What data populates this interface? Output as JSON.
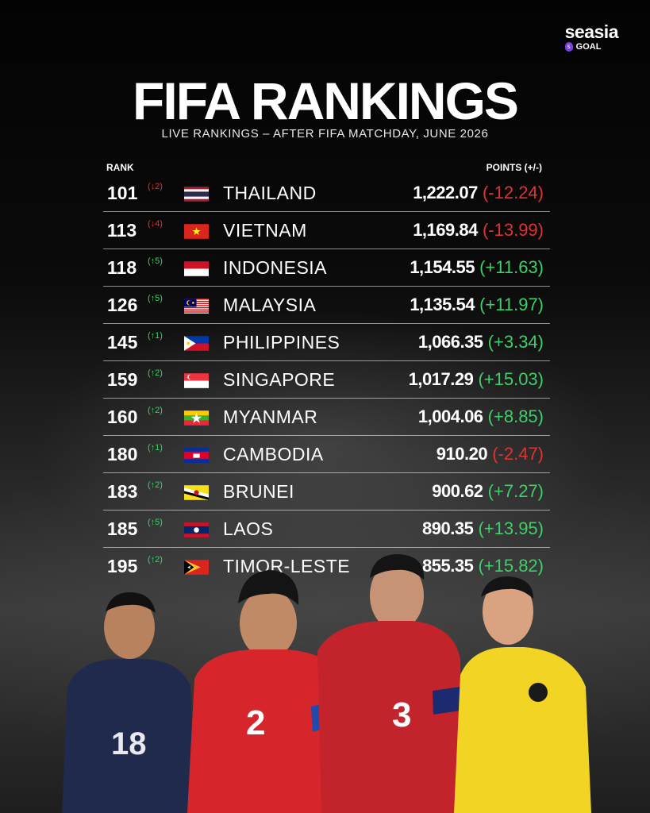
{
  "logo": {
    "brand": "seasia",
    "badge": "s",
    "sub": "GOAL"
  },
  "title": "FIFA RANKINGS",
  "subtitle": "LIVE RANKINGS – AFTER FIFA MATCHDAY, JUNE 2026",
  "headers": {
    "rank": "RANK",
    "points": "POINTS (+/-)"
  },
  "colors": {
    "up": "#3ecf6a",
    "down": "#e0332f",
    "brand_accent": "#7b3fe4"
  },
  "rows": [
    {
      "rank": "101",
      "change": "(↓2)",
      "dir": "down",
      "flag": "thailand-flag",
      "country": "THAILAND",
      "points": "1,222.07",
      "delta": "(-12.24)"
    },
    {
      "rank": "113",
      "change": "(↓4)",
      "dir": "down",
      "flag": "vietnam-flag",
      "country": "VIETNAM",
      "points": "1,169.84",
      "delta": "(-13.99)"
    },
    {
      "rank": "118",
      "change": "(↑5)",
      "dir": "up",
      "flag": "indonesia-flag",
      "country": "INDONESIA",
      "points": "1,154.55",
      "delta": "(+11.63)"
    },
    {
      "rank": "126",
      "change": "(↑5)",
      "dir": "up",
      "flag": "malaysia-flag",
      "country": "MALAYSIA",
      "points": "1,135.54",
      "delta": "(+11.97)"
    },
    {
      "rank": "145",
      "change": "(↑1)",
      "dir": "up",
      "flag": "philippines-flag",
      "country": "PHILIPPINES",
      "points": "1,066.35",
      "delta": "(+3.34)"
    },
    {
      "rank": "159",
      "change": "(↑2)",
      "dir": "up",
      "flag": "singapore-flag",
      "country": "SINGAPORE",
      "points": "1,017.29",
      "delta": "(+15.03)"
    },
    {
      "rank": "160",
      "change": "(↑2)",
      "dir": "up",
      "flag": "myanmar-flag",
      "country": "MYANMAR",
      "points": "1,004.06",
      "delta": "(+8.85)"
    },
    {
      "rank": "180",
      "change": "(↑1)",
      "dir": "up",
      "flag": "cambodia-flag",
      "country": "CAMBODIA",
      "points": "910.20",
      "delta": "(-2.47)",
      "delta_dir": "down"
    },
    {
      "rank": "183",
      "change": "(↑2)",
      "dir": "up",
      "flag": "brunei-flag",
      "country": "BRUNEI",
      "points": "900.62",
      "delta": "(+7.27)"
    },
    {
      "rank": "185",
      "change": "(↑5)",
      "dir": "up",
      "flag": "laos-flag",
      "country": "LAOS",
      "points": "890.35",
      "delta": "(+13.95)"
    },
    {
      "rank": "195",
      "change": "(↑2)",
      "dir": "up",
      "flag": "timor-leste-flag",
      "country": "TIMOR-LESTE",
      "points": "855.35",
      "delta": "(+15.82)"
    }
  ],
  "players": [
    {
      "shirt_number": "18"
    },
    {
      "shirt_number": "2"
    },
    {
      "shirt_number": "3"
    },
    {
      "shirt_number": ""
    }
  ]
}
